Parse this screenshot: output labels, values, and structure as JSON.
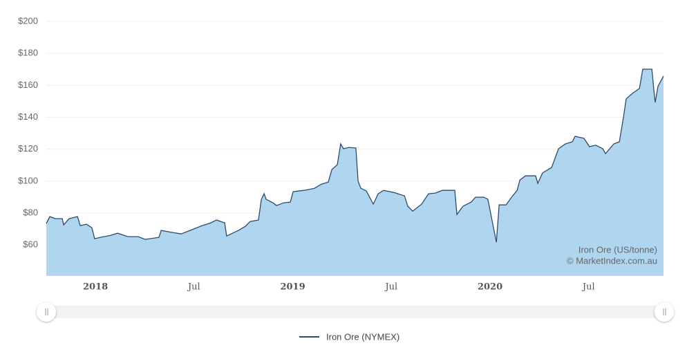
{
  "chart_data": {
    "type": "area",
    "annotations": [
      "Iron Ore (US/tonne)",
      "© MarketIndex.com.au"
    ],
    "series": [
      {
        "name": "Iron Ore (NYMEX)",
        "color": "#2b4a6b",
        "fill": "#b0d5ee",
        "x": [
          2017.751,
          2017.769,
          2017.797,
          2017.832,
          2017.839,
          2017.867,
          2017.909,
          2017.923,
          2017.954,
          2017.982,
          2017.996,
          2018.025,
          2018.077,
          2018.112,
          2018.165,
          2018.217,
          2018.252,
          2018.322,
          2018.333,
          2018.392,
          2018.434,
          2018.48,
          2018.532,
          2018.585,
          2018.613,
          2018.655,
          2018.665,
          2018.725,
          2018.76,
          2018.784,
          2018.826,
          2018.841,
          2018.855,
          2018.865,
          2018.9,
          2018.918,
          2018.953,
          2018.988,
          2019.002,
          2019.058,
          2019.11,
          2019.145,
          2019.18,
          2019.198,
          2019.226,
          2019.243,
          2019.257,
          2019.285,
          2019.32,
          2019.331,
          2019.345,
          2019.373,
          2019.408,
          2019.433,
          2019.46,
          2019.513,
          2019.566,
          2019.583,
          2019.608,
          2019.653,
          2019.688,
          2019.723,
          2019.758,
          2019.821,
          2019.832,
          2019.863,
          2019.905,
          2019.926,
          2019.968,
          2019.989,
          2020.032,
          2020.046,
          2020.081,
          2020.109,
          2020.137,
          2020.151,
          2020.179,
          2020.231,
          2020.242,
          2020.266,
          2020.312,
          2020.347,
          2020.382,
          2020.417,
          2020.431,
          2020.476,
          2020.504,
          2020.536,
          2020.571,
          2020.585,
          2020.627,
          2020.655,
          2020.676,
          2020.69,
          2020.722,
          2020.757,
          2020.774,
          2020.82,
          2020.83,
          2020.837,
          2020.851,
          2020.879
        ],
        "values": [
          73.4,
          77.8,
          76.5,
          76.5,
          72.6,
          76.5,
          77.8,
          72.1,
          73,
          70.8,
          63.9,
          64.8,
          66,
          67.4,
          65.2,
          65.2,
          63.5,
          64.8,
          69.1,
          67.8,
          66.9,
          69.1,
          71.7,
          73.9,
          75.6,
          73.9,
          65.6,
          69.1,
          71.7,
          74.7,
          75.6,
          88.6,
          92.1,
          88.6,
          86.4,
          84.7,
          86.4,
          86.9,
          93.4,
          94.2,
          95.5,
          98.1,
          99.4,
          107.2,
          110.3,
          123.3,
          120.3,
          121.1,
          120.7,
          99.9,
          95.5,
          93.8,
          85.6,
          92.1,
          94.2,
          92.9,
          90.8,
          84.3,
          81.2,
          85.6,
          92.1,
          92.5,
          94.2,
          94.2,
          79.1,
          84.3,
          86.9,
          89.9,
          89.9,
          88.6,
          61.7,
          85.1,
          85.1,
          89.9,
          94.2,
          100.7,
          103.3,
          103.3,
          98.6,
          105.1,
          108.5,
          120.3,
          123.3,
          124.6,
          128.1,
          126.8,
          121.6,
          122.5,
          120.3,
          117.2,
          123.3,
          124.6,
          139.8,
          151.5,
          155,
          158,
          170.1,
          170.1,
          157.1,
          149.3,
          159.3,
          165.8
        ]
      }
    ],
    "xlim": [
      2017.751,
      2020.879
    ],
    "xticks": [
      2018,
      {
        "value": 2018.5,
        "label": "Jul"
      },
      2019,
      {
        "value": 2019.5,
        "label": "Jul"
      },
      2020,
      {
        "value": 2020.5,
        "label": "Jul"
      }
    ],
    "ylim": [
      41,
      200
    ],
    "yticks": [
      {
        "value": 60,
        "label": "$60"
      },
      {
        "value": 80,
        "label": "$80"
      },
      {
        "value": 100,
        "label": "$100"
      },
      {
        "value": 120,
        "label": "$120"
      },
      {
        "value": 140,
        "label": "$140"
      },
      {
        "value": 160,
        "label": "$160"
      },
      {
        "value": 180,
        "label": "$180"
      },
      {
        "value": 200,
        "label": "$200"
      }
    ],
    "grid": true
  }
}
